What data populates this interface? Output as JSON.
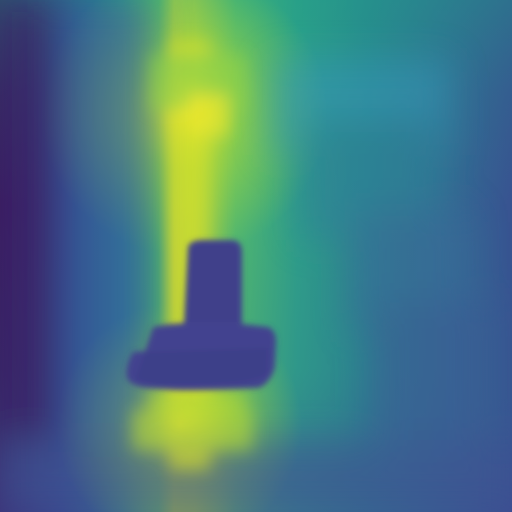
{
  "image": {
    "kind": "depth-map",
    "colormap": "viridis",
    "palette": {
      "far_dark": "#3a0f58",
      "deep_blue": "#2f3f8a",
      "blue": "#3b5e95",
      "teal": "#2b8c8d",
      "green": "#33b27a",
      "yellow_green": "#b6dc2d",
      "bright_yellow": "#f3ea2a",
      "object": "#43428f"
    }
  }
}
